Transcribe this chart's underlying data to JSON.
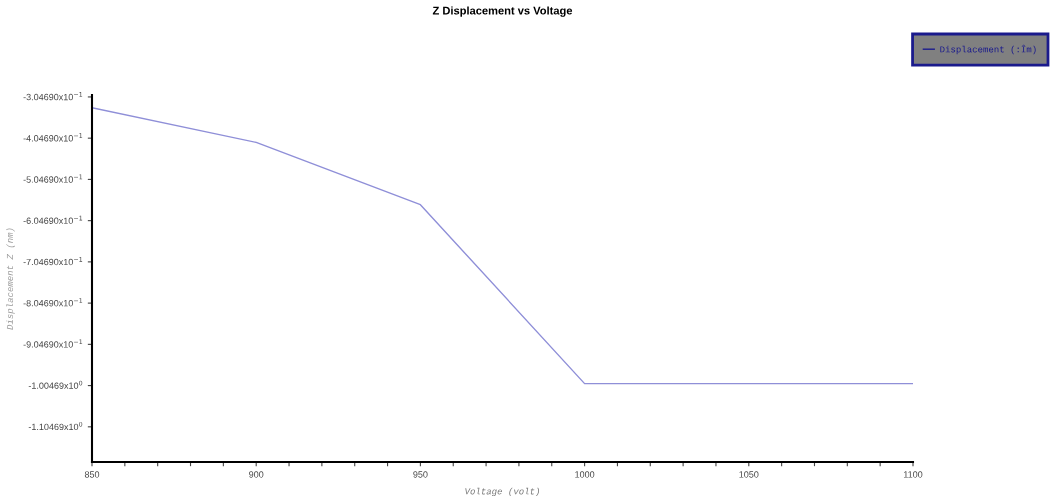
{
  "chart_data": {
    "type": "line",
    "title": "Z Displacement vs Voltage",
    "xlabel": "Voltage (volt)",
    "ylabel": "Displacement Z (nm)",
    "x": [
      850,
      900,
      950,
      1000,
      1100
    ],
    "series": [
      {
        "name": "Displacement (:Îm)",
        "color": "#8f8fd8",
        "values": [
          -0.331,
          -0.415,
          -0.566,
          -1.0,
          -1.0
        ]
      }
    ],
    "xlim": [
      850,
      1100
    ],
    "xticks": [
      850,
      {
        "value": 860,
        "label": null
      },
      {
        "value": 870,
        "label": null
      },
      {
        "value": 880,
        "label": null
      },
      {
        "value": 890,
        "label": null
      },
      900,
      {
        "value": 910,
        "label": null
      },
      {
        "value": 920,
        "label": null
      },
      {
        "value": 930,
        "label": null
      },
      {
        "value": 940,
        "label": null
      },
      950,
      {
        "value": 960,
        "label": null
      },
      {
        "value": 970,
        "label": null
      },
      {
        "value": 980,
        "label": null
      },
      {
        "value": 990,
        "label": null
      },
      1000,
      {
        "value": 1010,
        "label": null
      },
      {
        "value": 1020,
        "label": null
      },
      {
        "value": 1030,
        "label": null
      },
      {
        "value": 1040,
        "label": null
      },
      1050,
      {
        "value": 1060,
        "label": null
      },
      {
        "value": 1070,
        "label": null
      },
      {
        "value": 1080,
        "label": null
      },
      {
        "value": 1090,
        "label": null
      },
      1100
    ],
    "ylim": [
      -1.19,
      -0.3
    ],
    "yticks": [
      {
        "value": -0.30469,
        "label": "-3.04690x10$^{−1}$"
      },
      {
        "value": -0.40469,
        "label": "-4.04690x10$^{−1}$"
      },
      {
        "value": -0.50469,
        "label": "-5.04690x10$^{−1}$"
      },
      {
        "value": -0.60469,
        "label": "-6.04690x10$^{−1}$"
      },
      {
        "value": -0.70469,
        "label": "-7.04690x10$^{−1}$"
      },
      {
        "value": -0.80469,
        "label": "-8.04690x10$^{−1}$"
      },
      {
        "value": -0.90469,
        "label": "-9.04690x10$^{−1}$"
      },
      {
        "value": -1.00469,
        "label": "-1.00469x10$^{0}$"
      },
      {
        "value": -1.10469,
        "label": "-1.10469x10$^{0}$"
      }
    ],
    "grid": false,
    "legend": "top right",
    "marker": "none",
    "line_style": "solid"
  }
}
